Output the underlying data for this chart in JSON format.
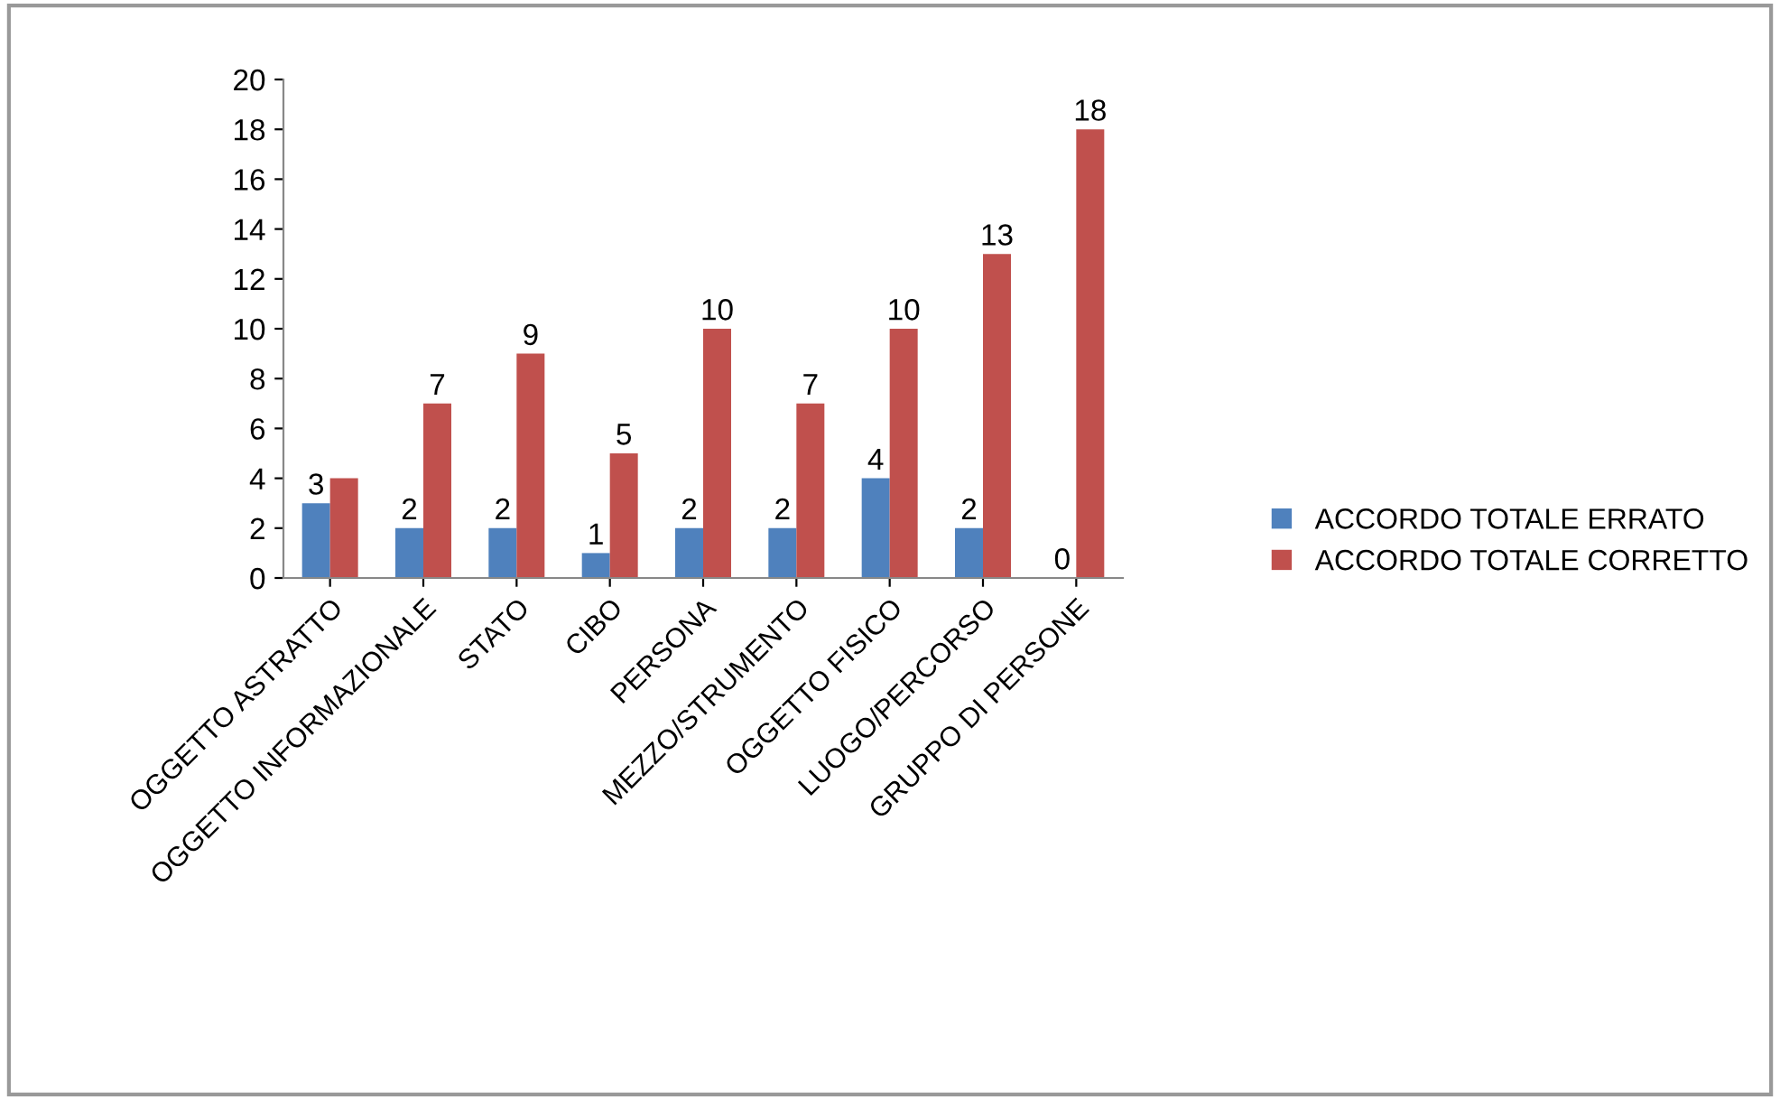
{
  "chart_data": {
    "type": "bar",
    "categories": [
      "OGGETTO ASTRATTO",
      "OGGETTO INFORMAZIONALE",
      "STATO",
      "CIBO",
      "PERSONA",
      "MEZZO/STRUMENTO",
      "OGGETTO FISICO",
      "LUOGO/PERCORSO",
      "GRUPPO DI PERSONE"
    ],
    "series": [
      {
        "name": "ACCORDO TOTALE ERRATO",
        "color": "#4f81bd",
        "values": [
          3,
          2,
          2,
          1,
          2,
          2,
          4,
          2,
          0
        ],
        "value_labels": [
          "3",
          "2",
          "2",
          "1",
          "2",
          "2",
          "4",
          "2",
          "0"
        ]
      },
      {
        "name": "ACCORDO TOTALE CORRETTO",
        "color": "#c0504d",
        "values": [
          4,
          7,
          9,
          5,
          10,
          7,
          10,
          13,
          18
        ],
        "value_labels": [
          null,
          "7",
          "9",
          "5",
          "10",
          "7",
          "10",
          "13",
          "18"
        ]
      }
    ],
    "ylim": [
      0,
      20
    ],
    "yticks": [
      0,
      2,
      4,
      6,
      8,
      10,
      12,
      14,
      16,
      18,
      20
    ],
    "grid": false,
    "legend": "right"
  }
}
